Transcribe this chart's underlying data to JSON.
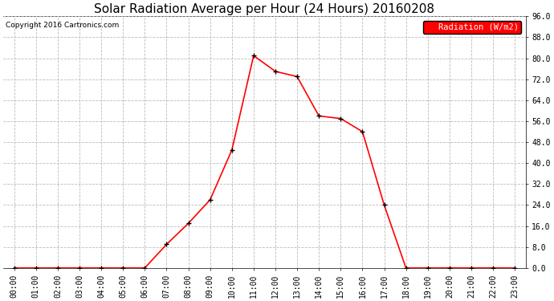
{
  "title": "Solar Radiation Average per Hour (24 Hours) 20160208",
  "copyright": "Copyright 2016 Cartronics.com",
  "legend_label": "Radiation (W/m2)",
  "hours": [
    "00:00",
    "01:00",
    "02:00",
    "03:00",
    "04:00",
    "05:00",
    "06:00",
    "07:00",
    "08:00",
    "09:00",
    "10:00",
    "11:00",
    "12:00",
    "13:00",
    "14:00",
    "15:00",
    "16:00",
    "17:00",
    "18:00",
    "19:00",
    "20:00",
    "21:00",
    "22:00",
    "23:00"
  ],
  "values": [
    0,
    0,
    0,
    0,
    0,
    0,
    0,
    9,
    17,
    26,
    45,
    81,
    75,
    73,
    58,
    57,
    52,
    24,
    0,
    0,
    0,
    0,
    0,
    0
  ],
  "line_color": "#ff0000",
  "marker_color": "#000000",
  "bg_color": "#ffffff",
  "grid_color": "#bbbbbb",
  "yticks": [
    0.0,
    8.0,
    16.0,
    24.0,
    32.0,
    40.0,
    48.0,
    56.0,
    64.0,
    72.0,
    80.0,
    88.0,
    96.0
  ],
  "ylim": [
    0,
    96
  ],
  "title_fontsize": 11,
  "copyright_fontsize": 6.5,
  "legend_fontsize": 7.5,
  "tick_fontsize": 7
}
